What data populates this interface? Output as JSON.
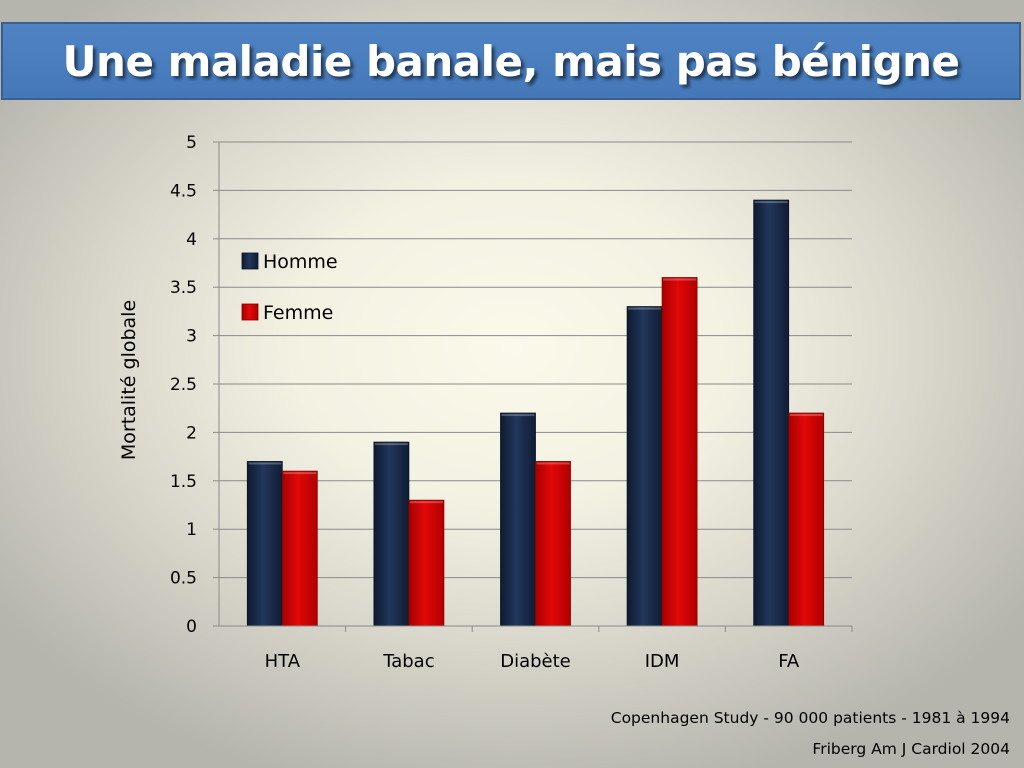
{
  "slide": {
    "title": "Une maladie banale, mais pas bénigne",
    "source_line1": "Copenhagen Study - 90 000 patients - 1981 à 1994",
    "source_line2": "Friberg Am J Cardiol 2004"
  },
  "colors": {
    "title_bar": "#4a7fc1",
    "homme": "#1b2d4d",
    "femme": "#d40000",
    "grid": "#8a8a8a"
  },
  "chart_data": {
    "type": "bar",
    "categories": [
      "HTA",
      "Tabac",
      "Diabète",
      "IDM",
      "FA"
    ],
    "series": [
      {
        "name": "Homme",
        "values": [
          1.7,
          1.9,
          2.2,
          3.3,
          4.4
        ]
      },
      {
        "name": "Femme",
        "values": [
          1.6,
          1.3,
          1.7,
          3.6,
          2.2
        ]
      }
    ],
    "ylabel": "Mortalité globale",
    "xlabel": "",
    "ylim": [
      0,
      5
    ],
    "yticks": [
      "0",
      "0.5",
      "1",
      "1.5",
      "2",
      "2.5",
      "3",
      "3.5",
      "4",
      "4.5",
      "5"
    ],
    "grid": true,
    "legend_position": "top-left"
  }
}
